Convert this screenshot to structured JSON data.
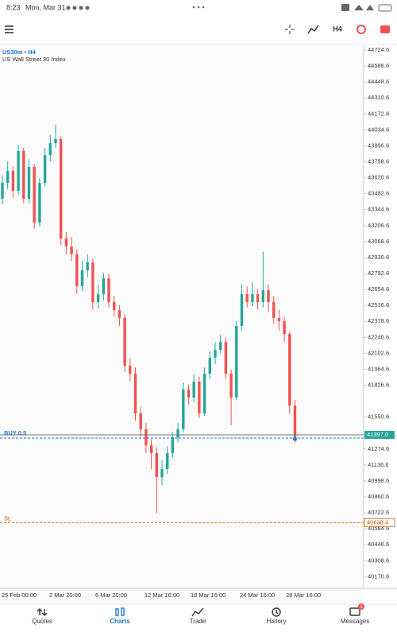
{
  "status_bar": {
    "time": "8:23",
    "date": "Mon, Mar 31"
  },
  "toolbar": {
    "timeframe": "H4"
  },
  "chart_data": {
    "type": "candlestick",
    "symbol": "US30m • H4",
    "instrument": "US Wall Street 30 Index",
    "x_labels": [
      "25 Feb 00:00",
      "2 Mar 20:00",
      "6 Mar 20:00",
      "12 Mar 16:00",
      "18 Mar 16:00",
      "24 Mar 16:00",
      "28 Mar 16:00"
    ],
    "open": [
      43440,
      43576,
      43680,
      43508,
      43852,
      43439,
      43714,
      43233,
      43576,
      43817,
      43920,
      43955,
      43095,
      43026,
      42958,
      42683,
      42820,
      42889,
      42545,
      42614,
      42751,
      42545,
      42476,
      42408,
      41995,
      41926,
      41582,
      41445,
      41307,
      41239,
      41032,
      41101,
      41239,
      41376,
      41445,
      41789,
      41720,
      41857,
      41582,
      41926,
      42064,
      42132,
      42201,
      41926,
      41720,
      42339,
      42614,
      42545,
      42614,
      42545,
      42648,
      42545,
      42408,
      42380,
      42270,
      41650
    ],
    "high": [
      43640,
      43760,
      43720,
      43900,
      43880,
      43780,
      43740,
      43620,
      43880,
      43990,
      44080,
      43980,
      43150,
      43110,
      43000,
      42900,
      42960,
      42920,
      42700,
      42800,
      42790,
      42600,
      42520,
      42440,
      42060,
      41980,
      41640,
      41500,
      41360,
      41290,
      41180,
      41300,
      41420,
      41500,
      41850,
      41830,
      41920,
      41900,
      41980,
      42120,
      42200,
      42260,
      42240,
      41960,
      42380,
      42700,
      42680,
      42720,
      42660,
      42980,
      42700,
      42600,
      42480,
      42420,
      42290,
      41700
    ],
    "low": [
      43390,
      43520,
      43450,
      43470,
      43400,
      43400,
      43180,
      43200,
      43540,
      43760,
      43880,
      43040,
      42960,
      42900,
      42620,
      42640,
      42760,
      42480,
      42490,
      42560,
      42500,
      42420,
      42340,
      41940,
      41860,
      41520,
      41380,
      41240,
      41100,
      40720,
      40960,
      41060,
      41200,
      41330,
      41420,
      41660,
      41680,
      41540,
      41560,
      41880,
      42010,
      42100,
      41880,
      41480,
      41700,
      42300,
      42500,
      42510,
      42480,
      42500,
      42460,
      42360,
      42300,
      42200,
      41580,
      41330
    ],
    "close": [
      43576,
      43680,
      43508,
      43852,
      43439,
      43714,
      43233,
      43576,
      43817,
      43920,
      43955,
      43095,
      43026,
      42958,
      42683,
      42820,
      42889,
      42545,
      42614,
      42751,
      42545,
      42476,
      42408,
      41995,
      41926,
      41582,
      41445,
      41307,
      41239,
      41032,
      41101,
      41239,
      41376,
      41445,
      41789,
      41720,
      41857,
      41582,
      41926,
      42064,
      42132,
      42201,
      41926,
      41720,
      42339,
      42614,
      42545,
      42614,
      42545,
      42648,
      42545,
      42408,
      42380,
      42270,
      41650,
      41380
    ],
    "up_color": "#26a69a",
    "down_color": "#ef5350",
    "ylim": [
      39953,
      44766
    ],
    "yticks": [
      44724.6,
      44586.6,
      44448.6,
      44310.6,
      44172.6,
      44034.6,
      43896.6,
      43758.6,
      43620.6,
      43482.6,
      43344.6,
      43206.6,
      43068.6,
      42930.6,
      42792.6,
      42654.6,
      42516.6,
      42378.6,
      42240.6,
      42102.6,
      41964.6,
      41826.6,
      41550.6,
      41274.6,
      41136.6,
      40998.6,
      40860.6,
      40722.6,
      40584.6,
      40446.6,
      40308.6,
      40170.6
    ],
    "bid": {
      "value": 41397,
      "label": "41397.0"
    },
    "position": {
      "label": "BUY 0.5",
      "value": 41369
    },
    "stop_loss": {
      "label": "SL",
      "value": 40638.4
    }
  },
  "nav": {
    "tabs": [
      "Quotes",
      "Charts",
      "Trade",
      "History",
      "Messages"
    ],
    "badge": "1"
  }
}
